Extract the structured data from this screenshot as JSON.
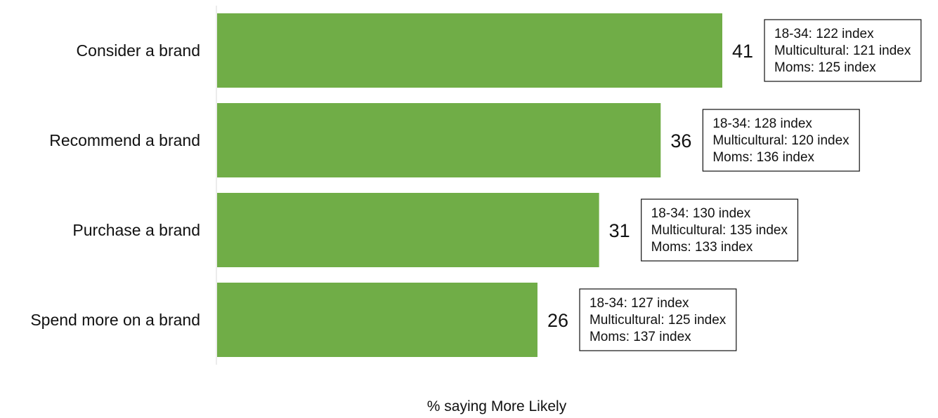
{
  "chart_data": {
    "type": "bar",
    "orientation": "horizontal",
    "categories": [
      "Consider a brand",
      "Recommend a brand",
      "Purchase a brand",
      "Spend more on a brand"
    ],
    "values": [
      41,
      36,
      31,
      26
    ],
    "bar_color": "#70ad47",
    "xlabel": "% saying More Likely",
    "ylabel": "",
    "title": "",
    "xlim": [
      0,
      41
    ],
    "grid": false,
    "annotations": [
      [
        "18-34: 122 index",
        "Multicultural: 121 index",
        "Moms: 125 index"
      ],
      [
        "18-34: 128 index",
        "Multicultural: 120 index",
        "Moms: 136 index"
      ],
      [
        "18-34: 130 index",
        "Multicultural: 135 index",
        "Moms: 133 index"
      ],
      [
        "18-34: 127 index",
        "Multicultural: 125 index",
        "Moms: 137 index"
      ]
    ]
  }
}
